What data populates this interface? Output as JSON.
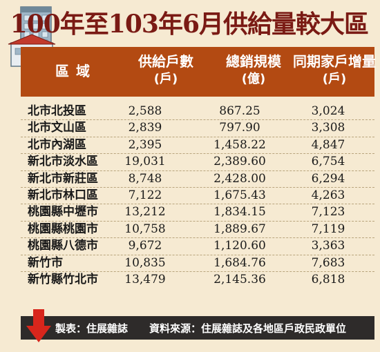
{
  "title": "100年至103年6月供給量較大區",
  "header": {
    "region": "區域",
    "supply": "供給戶數",
    "supply_unit": "(戶)",
    "sales": "總銷規模",
    "sales_unit": "(億)",
    "households": "同期家戶增量",
    "households_unit": "(戶)"
  },
  "rows": [
    {
      "region": "北市北投區",
      "supply": "2,588",
      "sales": "867.25",
      "households": "3,024"
    },
    {
      "region": "北市文山區",
      "supply": "2,839",
      "sales": "797.90",
      "households": "3,308"
    },
    {
      "region": "北市內湖區",
      "supply": "2,395",
      "sales": "1,458.22",
      "households": "4,847"
    },
    {
      "region": "新北市淡水區",
      "supply": "19,031",
      "sales": "2,389.60",
      "households": "6,754"
    },
    {
      "region": "新北市新莊區",
      "supply": "8,748",
      "sales": "2,428.00",
      "households": "6,294"
    },
    {
      "region": "新北市林口區",
      "supply": "7,122",
      "sales": "1,675.43",
      "households": "4,263"
    },
    {
      "region": "桃園縣中壢市",
      "supply": "13,212",
      "sales": "1,834.15",
      "households": "7,123"
    },
    {
      "region": "桃園縣桃園市",
      "supply": "10,758",
      "sales": "1,889.67",
      "households": "7,119"
    },
    {
      "region": "桃園縣八德市",
      "supply": "9,672",
      "sales": "1,120.60",
      "households": "3,363"
    },
    {
      "region": "新竹市",
      "supply": "10,835",
      "sales": "1,684.76",
      "households": "7,683"
    },
    {
      "region": "新竹縣竹北市",
      "supply": "13,479",
      "sales": "2,145.36",
      "households": "6,818"
    }
  ],
  "footer": {
    "maker": "製表：住展雜誌",
    "source": "資料來源：住展雜誌及各地區戶政民政單位"
  },
  "colors": {
    "title": "#7a1a14",
    "header_bg": "#b34a12",
    "background": "#f6ead2",
    "footer_bg": "#2e2b2a",
    "arrow": "#d8261c"
  },
  "icons": [
    "building-icon",
    "down-arrow-icon"
  ],
  "chart_data": {
    "type": "table",
    "title": "100年至103年6月供給量較大區",
    "columns": [
      "區域",
      "供給戶數(戶)",
      "總銷規模(億)",
      "同期家戶增量(戶)"
    ],
    "rows": [
      [
        "北市北投區",
        2588,
        867.25,
        3024
      ],
      [
        "北市文山區",
        2839,
        797.9,
        3308
      ],
      [
        "北市內湖區",
        2395,
        1458.22,
        4847
      ],
      [
        "新北市淡水區",
        19031,
        2389.6,
        6754
      ],
      [
        "新北市新莊區",
        8748,
        2428.0,
        6294
      ],
      [
        "新北市林口區",
        7122,
        1675.43,
        4263
      ],
      [
        "桃園縣中壢市",
        13212,
        1834.15,
        7123
      ],
      [
        "桃園縣桃園市",
        10758,
        1889.67,
        7119
      ],
      [
        "桃園縣八德市",
        9672,
        1120.6,
        3363
      ],
      [
        "新竹市",
        10835,
        1684.76,
        7683
      ],
      [
        "新竹縣竹北市",
        13479,
        2145.36,
        6818
      ]
    ]
  }
}
